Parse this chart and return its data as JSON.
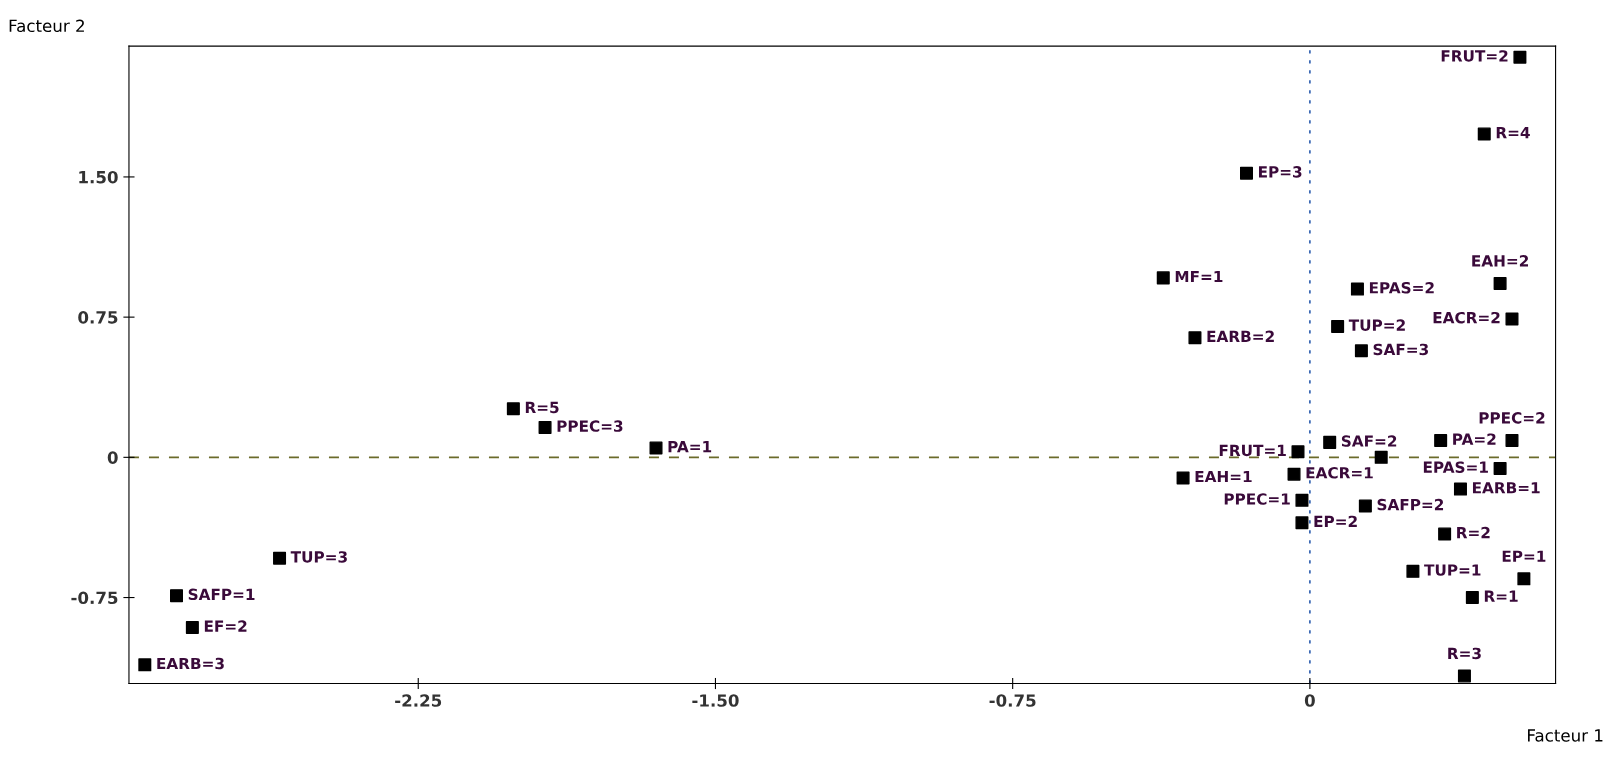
{
  "chart_data": {
    "type": "scatter",
    "xlabel": "Facteur 1",
    "ylabel": "Facteur 2",
    "xlim": [
      -2.98,
      0.62
    ],
    "ylim": [
      -1.21,
      2.2
    ],
    "xticks": [
      {
        "value": -2.25,
        "label": "-2.25"
      },
      {
        "value": -1.5,
        "label": "-1.50"
      },
      {
        "value": -0.75,
        "label": "-0.75"
      },
      0
    ],
    "yticks": [
      {
        "value": 1.5,
        "label": "1.50"
      },
      {
        "value": 0.75,
        "label": "0.75"
      },
      0,
      {
        "value": -0.75,
        "label": "-0.75"
      }
    ],
    "grid": false,
    "marker": "square",
    "series": [
      {
        "color": "#000000",
        "x": [
          0.53,
          0.44,
          -0.16,
          -0.37,
          -0.29,
          0.12,
          0.07,
          0.13,
          0.48,
          0.51,
          -0.03,
          0.05,
          0.18,
          0.33,
          0.51,
          0.48,
          -0.32,
          -0.04,
          -0.02,
          -0.02,
          0.14,
          0.38,
          0.34,
          0.26,
          0.54,
          0.41,
          0.39,
          -2.01,
          -1.93,
          -1.65,
          -2.6,
          -2.86,
          -2.82,
          -2.94
        ],
        "values": [
          2.14,
          1.73,
          1.52,
          0.96,
          0.64,
          0.9,
          0.7,
          0.57,
          0.93,
          0.74,
          0.03,
          0.08,
          0.0,
          0.09,
          0.09,
          -0.06,
          -0.11,
          -0.09,
          -0.23,
          -0.35,
          -0.26,
          -0.17,
          -0.41,
          -0.61,
          -0.65,
          -0.75,
          -1.17,
          0.26,
          0.16,
          0.05,
          -0.54,
          -0.74,
          -0.91,
          -1.11
        ]
      }
    ],
    "annotations": [
      {
        "text": "FRUT=2",
        "x": 0.53,
        "y": 2.14
      },
      {
        "text": "R=4",
        "x": 0.44,
        "y": 1.73
      },
      {
        "text": "EP=3",
        "x": -0.16,
        "y": 1.52
      },
      {
        "text": "MF=1",
        "x": -0.37,
        "y": 0.96
      },
      {
        "text": "EARB=2",
        "x": -0.29,
        "y": 0.64
      },
      {
        "text": "EPAS=2",
        "x": 0.12,
        "y": 0.9
      },
      {
        "text": "TUP=2",
        "x": 0.07,
        "y": 0.7
      },
      {
        "text": "SAF=3",
        "x": 0.13,
        "y": 0.57
      },
      {
        "text": "EAH=2",
        "x": 0.48,
        "y": 0.93
      },
      {
        "text": "EACR=2",
        "x": 0.51,
        "y": 0.74
      },
      {
        "text": "FRUT=1",
        "x": -0.03,
        "y": 0.03
      },
      {
        "text": "SAF=2",
        "x": 0.05,
        "y": 0.08
      },
      {
        "text": "PA=2",
        "x": 0.33,
        "y": 0.09
      },
      {
        "text": "PPEC=2",
        "x": 0.51,
        "y": 0.09
      },
      {
        "text": "EPAS=1",
        "x": 0.48,
        "y": -0.06
      },
      {
        "text": "EAH=1",
        "x": -0.32,
        "y": -0.11
      },
      {
        "text": "EACR=1",
        "x": -0.04,
        "y": -0.09
      },
      {
        "text": "PPEC=1",
        "x": -0.02,
        "y": -0.23
      },
      {
        "text": "EP=2",
        "x": -0.02,
        "y": -0.35
      },
      {
        "text": "SAFP=2",
        "x": 0.14,
        "y": -0.26
      },
      {
        "text": "EARB=1",
        "x": 0.38,
        "y": -0.17
      },
      {
        "text": "R=2",
        "x": 0.34,
        "y": -0.41
      },
      {
        "text": "TUP=1",
        "x": 0.26,
        "y": -0.61
      },
      {
        "text": "EP=1",
        "x": 0.54,
        "y": -0.65
      },
      {
        "text": "R=1",
        "x": 0.41,
        "y": -0.75
      },
      {
        "text": "R=3",
        "x": 0.39,
        "y": -1.17
      },
      {
        "text": "R=5",
        "x": -2.01,
        "y": 0.26
      },
      {
        "text": "PPEC=3",
        "x": -1.93,
        "y": 0.16
      },
      {
        "text": "PA=1",
        "x": -1.65,
        "y": 0.05
      },
      {
        "text": "TUP=3",
        "x": -2.6,
        "y": -0.54
      },
      {
        "text": "SAFP=1",
        "x": -2.86,
        "y": -0.74
      },
      {
        "text": "EF=2",
        "x": -2.82,
        "y": -0.91
      },
      {
        "text": "EARB=3",
        "x": -2.94,
        "y": -1.11
      }
    ],
    "ref_lines": [
      {
        "axis": "y",
        "value": 0,
        "color": "#6b6b2a",
        "line_style": "dashed"
      },
      {
        "axis": "x",
        "value": 0,
        "color": "#3060b0",
        "line_style": "dotted"
      }
    ]
  }
}
